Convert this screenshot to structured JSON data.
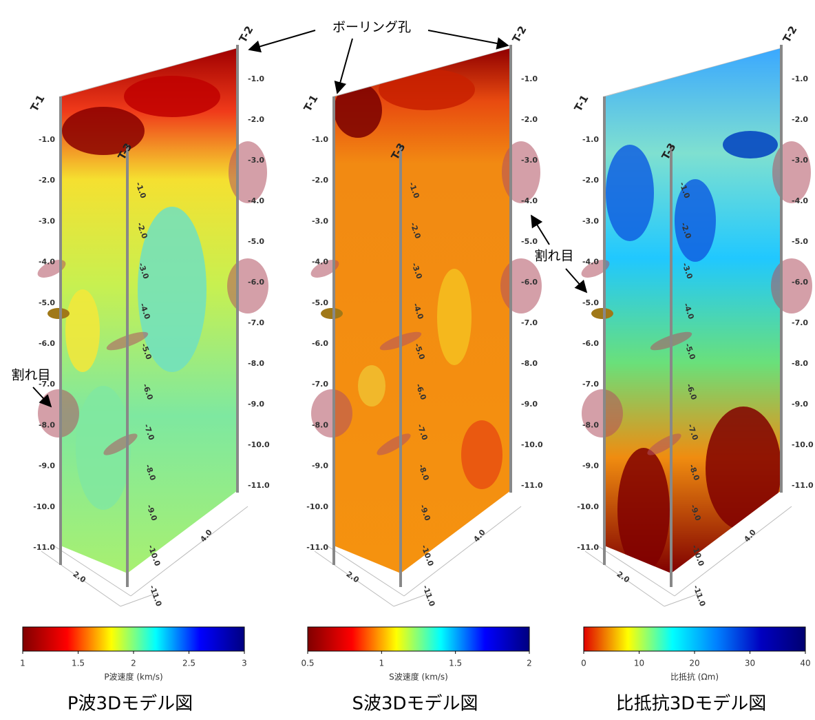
{
  "annotations": {
    "borehole": "ボーリング孔",
    "fracture_left": "割れ目",
    "fracture_right": "割れ目"
  },
  "depth_labels": [
    "-1.0",
    "-2.0",
    "-3.0",
    "-4.0",
    "-5.0",
    "-6.0",
    "-7.0",
    "-8.0",
    "-9.0",
    "-10.0",
    "-11.0"
  ],
  "panels": [
    {
      "title": "P波3Dモデル図",
      "boreholes": [
        "T-1",
        "T-2",
        "T-3"
      ],
      "floor_labels": [
        "2.0",
        "4.0"
      ],
      "colorbar": {
        "label": "P波速度 (km/s)",
        "lim": [
          1,
          3
        ],
        "ticks": [
          1,
          1.5,
          2,
          2.5,
          3
        ],
        "colors": [
          "#800000",
          "#ff0000",
          "#ffff00",
          "#00ffff",
          "#0000ff",
          "#000080"
        ]
      }
    },
    {
      "title": "S波3Dモデル図",
      "boreholes": [
        "T-1",
        "T-2",
        "T-3"
      ],
      "floor_labels": [
        "2.0",
        "4.0"
      ],
      "colorbar": {
        "label": "S波速度 (km/s)",
        "lim": [
          0.5,
          2
        ],
        "ticks": [
          0.5,
          1,
          1.5,
          2
        ],
        "colors": [
          "#800000",
          "#ff0000",
          "#ffff00",
          "#00ffff",
          "#0000ff",
          "#000080"
        ]
      }
    },
    {
      "title": "比抵抗3Dモデル図",
      "boreholes": [
        "T-1",
        "T-2",
        "T-3"
      ],
      "floor_labels": [
        "2.0",
        "4.0"
      ],
      "colorbar": {
        "label": "比抵抗 (Ωm)",
        "lim": [
          0,
          40
        ],
        "ticks": [
          0,
          10,
          20,
          30,
          40
        ],
        "colors": [
          "#e00000",
          "#ffff00",
          "#00ffff",
          "#0080ff",
          "#0000c0",
          "#000070"
        ]
      }
    }
  ]
}
